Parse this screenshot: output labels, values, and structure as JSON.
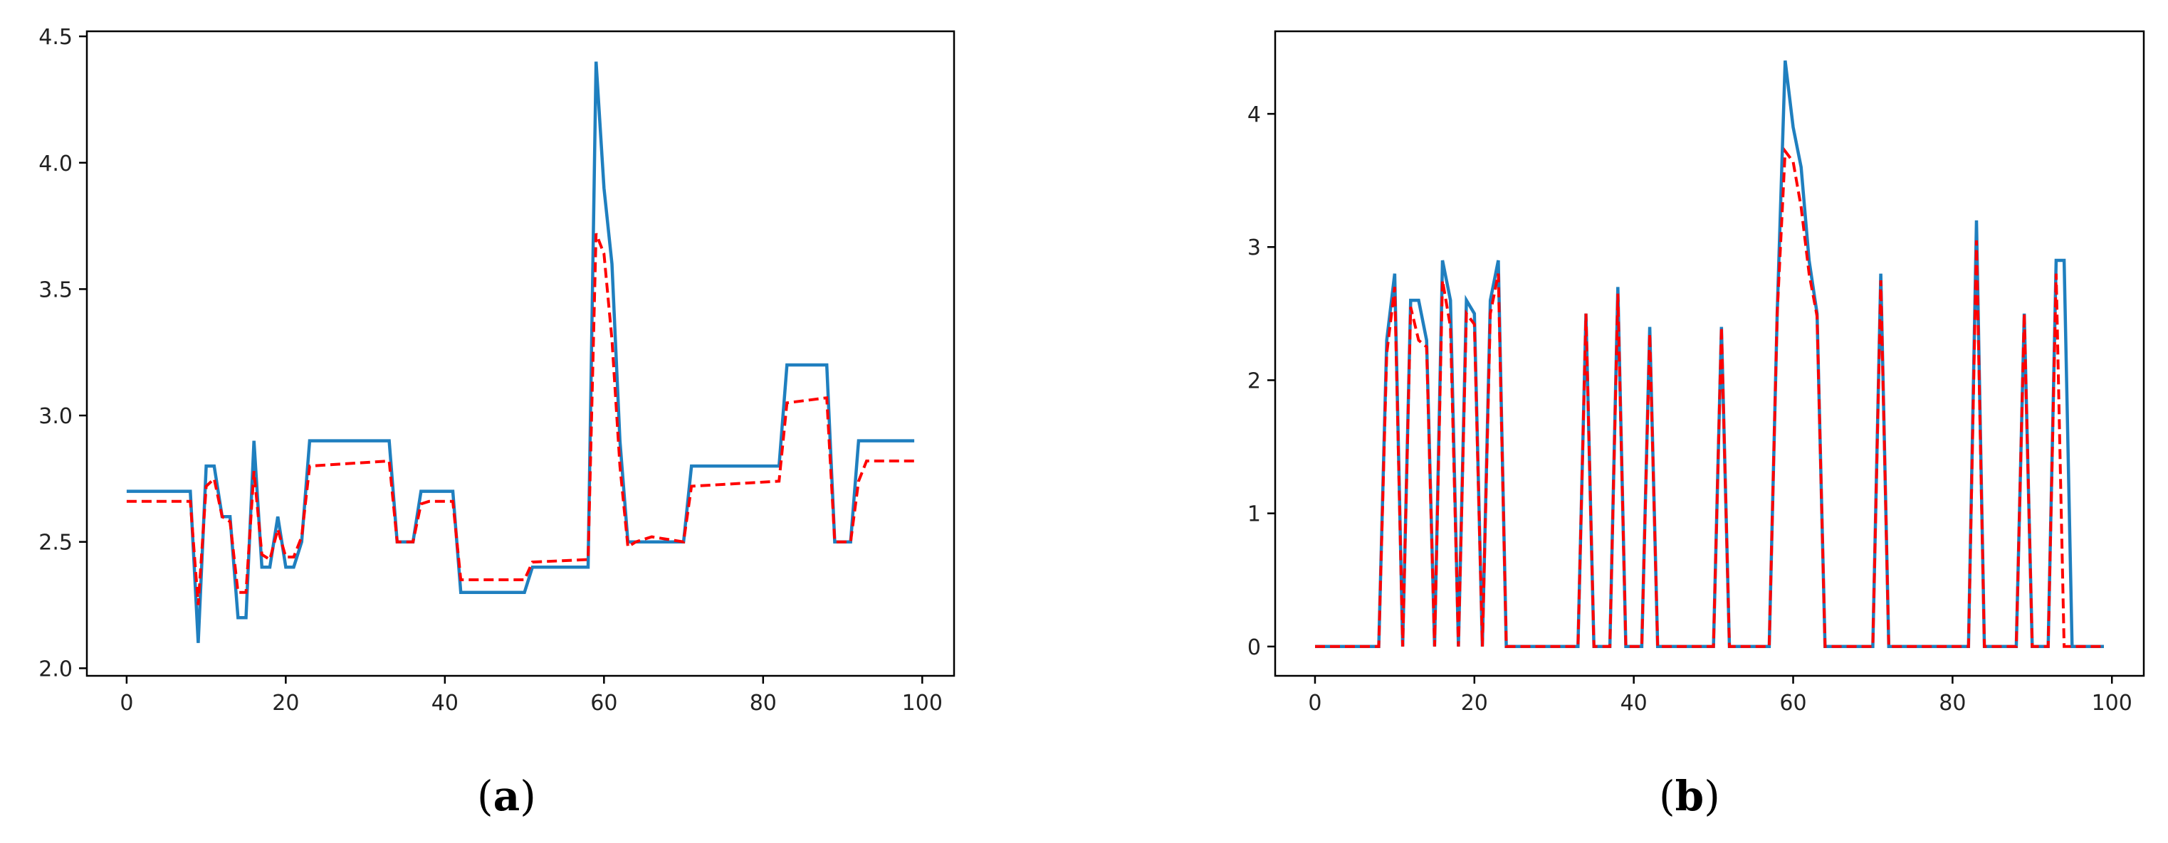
{
  "colors": {
    "series_solid": "#1f7fbf",
    "series_dashed": "#ff0000",
    "axis": "#000000"
  },
  "captions": [
    {
      "open": "(",
      "letter": "a",
      "close": ")"
    },
    {
      "open": "(",
      "letter": "b",
      "close": ")"
    }
  ],
  "chart_data": [
    {
      "type": "line",
      "title": "",
      "xlabel": "",
      "ylabel": "",
      "xlim": [
        -5,
        104
      ],
      "ylim": [
        1.97,
        4.52
      ],
      "xticks": [
        0,
        20,
        40,
        60,
        80,
        100
      ],
      "yticks": [
        2.0,
        2.5,
        3.0,
        3.5,
        4.0,
        4.5
      ],
      "ytick_decimals": 1,
      "grid": false,
      "series": [
        {
          "style": "solid",
          "color": "#1f7fbf",
          "x": [
            0,
            8,
            9,
            10,
            11,
            12,
            13,
            14,
            15,
            16,
            17,
            18,
            19,
            20,
            21,
            22,
            23,
            33,
            34,
            36,
            37,
            38,
            41,
            42,
            50,
            51,
            58,
            59,
            60,
            61,
            62,
            63,
            64,
            70,
            71,
            82,
            83,
            88,
            89,
            91,
            92,
            99
          ],
          "y": [
            2.7,
            2.7,
            2.1,
            2.8,
            2.8,
            2.6,
            2.6,
            2.2,
            2.2,
            2.9,
            2.4,
            2.4,
            2.6,
            2.4,
            2.4,
            2.5,
            2.9,
            2.9,
            2.5,
            2.5,
            2.7,
            2.7,
            2.7,
            2.3,
            2.3,
            2.4,
            2.4,
            4.4,
            3.9,
            3.6,
            2.9,
            2.5,
            2.5,
            2.5,
            2.8,
            2.8,
            3.2,
            3.2,
            2.5,
            2.5,
            2.9,
            2.9
          ]
        },
        {
          "style": "dashed",
          "color": "#ff0000",
          "x": [
            0,
            8,
            9,
            10,
            11,
            12,
            13,
            14,
            15,
            16,
            17,
            18,
            19,
            20,
            21,
            22,
            23,
            33,
            34,
            36,
            37,
            38,
            41,
            42,
            50,
            51,
            58,
            59,
            60,
            61,
            62,
            63,
            64,
            66,
            70,
            71,
            82,
            83,
            88,
            89,
            91,
            92,
            93,
            99
          ],
          "y": [
            2.66,
            2.66,
            2.25,
            2.72,
            2.75,
            2.6,
            2.58,
            2.3,
            2.3,
            2.78,
            2.45,
            2.43,
            2.55,
            2.44,
            2.44,
            2.52,
            2.8,
            2.82,
            2.5,
            2.5,
            2.65,
            2.66,
            2.66,
            2.35,
            2.35,
            2.42,
            2.43,
            3.72,
            3.64,
            3.3,
            2.8,
            2.48,
            2.5,
            2.52,
            2.5,
            2.72,
            2.74,
            3.05,
            3.07,
            2.5,
            2.5,
            2.74,
            2.82,
            2.82
          ]
        }
      ]
    },
    {
      "type": "line",
      "title": "",
      "xlabel": "",
      "ylabel": "",
      "xlim": [
        -5,
        104
      ],
      "ylim": [
        -0.22,
        4.62
      ],
      "xticks": [
        0,
        20,
        40,
        60,
        80,
        100
      ],
      "yticks": [
        0,
        1,
        2,
        3,
        4
      ],
      "ytick_decimals": 0,
      "grid": false,
      "series": [
        {
          "style": "solid",
          "color": "#1f7fbf",
          "x": [
            0,
            8,
            9,
            10,
            11,
            12,
            13,
            14,
            15,
            16,
            17,
            18,
            19,
            20,
            21,
            22,
            23,
            24,
            33,
            34,
            35,
            37,
            38,
            39,
            41,
            42,
            43,
            50,
            51,
            52,
            57,
            58,
            59,
            60,
            61,
            62,
            63,
            64,
            70,
            71,
            72,
            82,
            83,
            84,
            88,
            89,
            90,
            92,
            93,
            94,
            95,
            99
          ],
          "y": [
            0,
            0,
            2.3,
            2.8,
            0,
            2.6,
            2.6,
            2.3,
            0,
            2.9,
            2.6,
            0,
            2.6,
            2.5,
            0,
            2.6,
            2.9,
            0,
            0,
            2.5,
            0,
            0,
            2.7,
            0,
            0,
            2.4,
            0,
            0,
            2.4,
            0,
            0,
            2.5,
            4.4,
            3.9,
            3.6,
            2.9,
            2.5,
            0,
            0,
            2.8,
            0,
            0,
            3.2,
            0,
            0,
            2.5,
            0,
            0,
            2.9,
            2.9,
            0,
            0
          ]
        },
        {
          "style": "dashed",
          "color": "#ff0000",
          "x": [
            0,
            8,
            9,
            10,
            11,
            12,
            13,
            14,
            15,
            16,
            17,
            18,
            19,
            20,
            21,
            22,
            23,
            24,
            33,
            34,
            35,
            37,
            38,
            39,
            41,
            42,
            43,
            50,
            51,
            52,
            57,
            58,
            59,
            60,
            61,
            62,
            63,
            64,
            70,
            71,
            72,
            82,
            83,
            84,
            88,
            89,
            90,
            92,
            93,
            94,
            99
          ],
          "y": [
            0,
            0,
            2.2,
            2.7,
            0,
            2.55,
            2.3,
            2.25,
            0,
            2.75,
            2.4,
            0,
            2.5,
            2.42,
            0,
            2.5,
            2.8,
            0,
            0,
            2.5,
            0,
            0,
            2.65,
            0,
            0,
            2.35,
            0,
            0,
            2.4,
            0,
            0,
            2.5,
            3.72,
            3.64,
            3.3,
            2.8,
            2.48,
            0,
            0,
            2.75,
            0,
            0,
            3.05,
            0,
            0,
            2.5,
            0,
            0,
            2.8,
            0,
            0
          ]
        }
      ]
    }
  ]
}
